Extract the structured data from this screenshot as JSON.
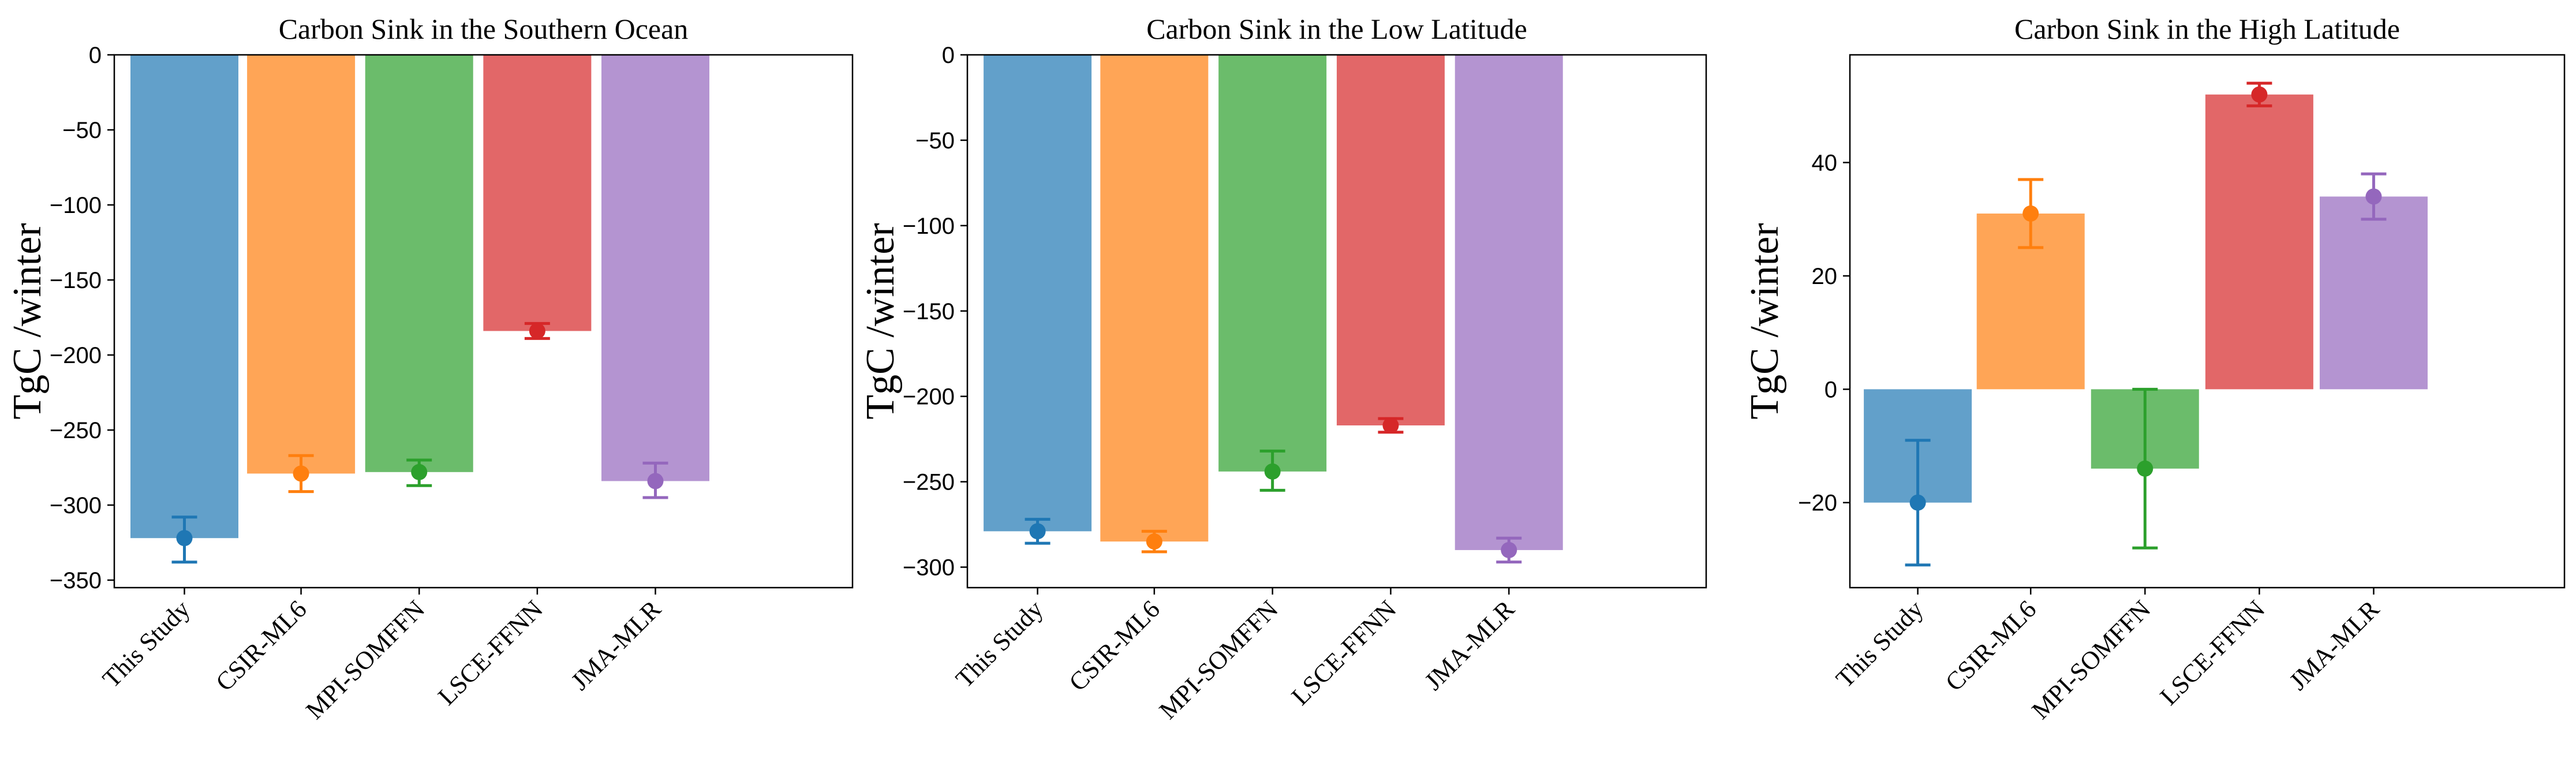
{
  "colors": [
    "#1f77b4",
    "#ff7f0e",
    "#2ca02c",
    "#d62728",
    "#9467bd"
  ],
  "chart_data": [
    {
      "type": "bar",
      "title": "Carbon Sink in the Southern Ocean",
      "ylabel": "TgC /winter",
      "xlabel": "",
      "categories": [
        "This Study",
        "CSIR-ML6",
        "MPI-SOMFFN",
        "LSCE-FFNN",
        "JMA-MLR"
      ],
      "values": [
        -322,
        -279,
        -278,
        -184,
        -284
      ],
      "points": [
        -322,
        -279,
        -278,
        -184,
        -284
      ],
      "err_low": [
        -338,
        -291,
        -287,
        -189,
        -295
      ],
      "err_high": [
        -308,
        -267,
        -270,
        -179,
        -272
      ],
      "ylim": [
        -355,
        0
      ],
      "yticks": [
        0,
        -50,
        -100,
        -150,
        -200,
        -250,
        -300,
        -350
      ],
      "ytick_labels": [
        "0",
        "−50",
        "−100",
        "−150",
        "−200",
        "−250",
        "−300",
        "−350"
      ],
      "grid": false,
      "legend": "none"
    },
    {
      "type": "bar",
      "title": "Carbon Sink in the Low Latitude",
      "ylabel": "TgC /winter",
      "xlabel": "",
      "categories": [
        "This Study",
        "CSIR-ML6",
        "MPI-SOMFFN",
        "LSCE-FFNN",
        "JMA-MLR"
      ],
      "values": [
        -279,
        -285,
        -244,
        -217,
        -290
      ],
      "points": [
        -279,
        -285,
        -244,
        -217,
        -290
      ],
      "err_low": [
        -286,
        -291,
        -255,
        -221,
        -297
      ],
      "err_high": [
        -272,
        -279,
        -232,
        -213,
        -283
      ],
      "ylim": [
        -312,
        0
      ],
      "yticks": [
        0,
        -50,
        -100,
        -150,
        -200,
        -250,
        -300
      ],
      "ytick_labels": [
        "0",
        "−50",
        "−100",
        "−150",
        "−200",
        "−250",
        "−300"
      ],
      "grid": false,
      "legend": "none"
    },
    {
      "type": "bar",
      "title": "Carbon Sink in the High Latitude",
      "ylabel": "TgC /winter",
      "xlabel": "",
      "categories": [
        "This Study",
        "CSIR-ML6",
        "MPI-SOMFFN",
        "LSCE-FFNN",
        "JMA-MLR"
      ],
      "values": [
        -20,
        31,
        -14,
        52,
        34
      ],
      "points": [
        -20,
        31,
        -14,
        52,
        34
      ],
      "err_low": [
        -31,
        25,
        -28,
        50,
        30
      ],
      "err_high": [
        -9,
        37,
        0,
        54,
        38
      ],
      "ylim": [
        -35,
        59
      ],
      "yticks": [
        40,
        20,
        0,
        -20
      ],
      "ytick_labels": [
        "40",
        "20",
        "0",
        "−20"
      ],
      "grid": false,
      "legend": "none"
    }
  ]
}
